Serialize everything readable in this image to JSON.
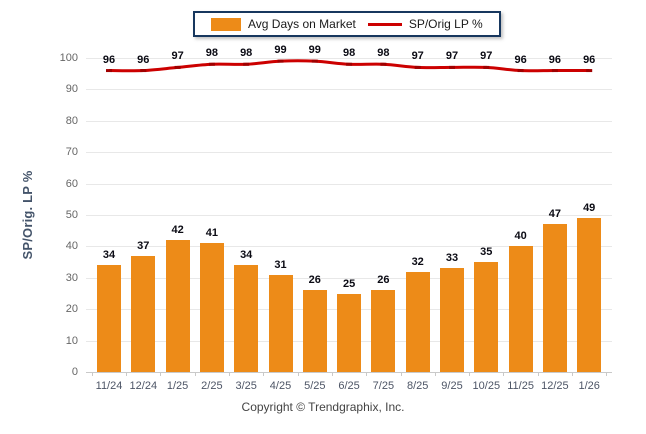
{
  "legend": {
    "items": [
      {
        "label": "Avg Days on Market",
        "swatch": "bar-swatch",
        "color": "#ED8B18"
      },
      {
        "label": "SP/Orig LP %",
        "swatch": "line-swatch",
        "color": "#CC0000"
      }
    ]
  },
  "footer": {
    "copyright": "Copyright © Trendgraphix, Inc."
  },
  "chart_data": {
    "type": "combo",
    "categories": [
      "11/24",
      "12/24",
      "1/25",
      "2/25",
      "3/25",
      "4/25",
      "5/25",
      "6/25",
      "7/25",
      "8/25",
      "9/25",
      "10/25",
      "11/25",
      "12/25",
      "1/26"
    ],
    "series": [
      {
        "name": "Avg Days on Market",
        "type": "bar",
        "color": "#ED8B18",
        "values": [
          34,
          37,
          42,
          41,
          34,
          31,
          26,
          25,
          26,
          32,
          33,
          35,
          40,
          47,
          49
        ]
      },
      {
        "name": "SP/Orig LP %",
        "type": "line",
        "color": "#CC0000",
        "values": [
          96,
          96,
          97,
          98,
          98,
          99,
          99,
          98,
          98,
          97,
          97,
          97,
          96,
          96,
          96
        ]
      }
    ],
    "title": "",
    "xlabel": "",
    "ylabel": "SP/Orig. LP %",
    "ylim": [
      0,
      100
    ],
    "ytick_step": 10,
    "grid": true,
    "legend_position": "top-center",
    "data_labels": true
  }
}
